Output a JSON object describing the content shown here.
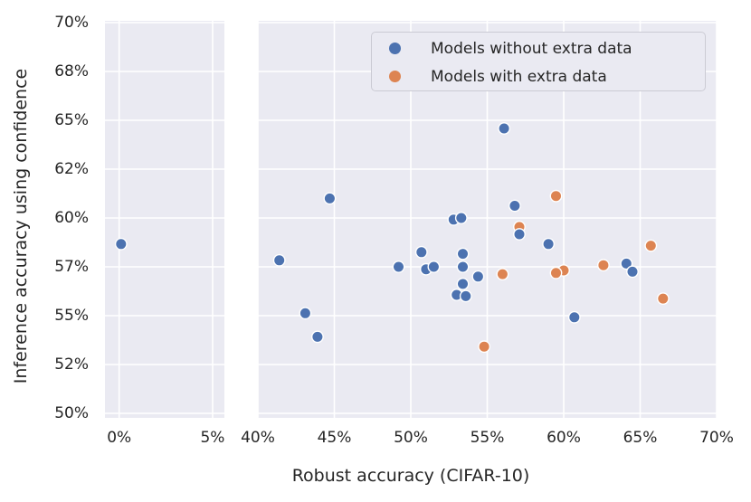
{
  "chart_data": {
    "type": "scatter",
    "title": "",
    "xlabel": "Robust accuracy (CIFAR-10)",
    "ylabel": "Inference accuracy using confidence",
    "grid": true,
    "legend_position": "upper right",
    "background_color": "#eaeaf2",
    "gridline_color": "#ffffff",
    "text_color": "#262626",
    "y_ticks": [
      {
        "value": 70,
        "label": "70%"
      },
      {
        "value": 68,
        "label": "68%"
      },
      {
        "value": 65,
        "label": "65%"
      },
      {
        "value": 62,
        "label": "62%"
      },
      {
        "value": 60,
        "label": "60%"
      },
      {
        "value": 57,
        "label": "57%"
      },
      {
        "value": 55,
        "label": "55%"
      },
      {
        "value": 52,
        "label": "52%"
      },
      {
        "value": 50,
        "label": "50%"
      }
    ],
    "ylim": [
      50,
      70
    ],
    "panels": [
      {
        "xlim": [
          -0.76,
          5.63
        ],
        "x_ticks": [
          {
            "value": 0,
            "label": "0%"
          },
          {
            "value": 5,
            "label": "5%"
          }
        ]
      },
      {
        "xlim": [
          40,
          70
        ],
        "x_ticks": [
          {
            "value": 40,
            "label": "40%"
          },
          {
            "value": 45,
            "label": "45%"
          },
          {
            "value": 50,
            "label": "50%"
          },
          {
            "value": 55,
            "label": "55%"
          },
          {
            "value": 60,
            "label": "60%"
          },
          {
            "value": 65,
            "label": "65%"
          },
          {
            "value": 70,
            "label": "70%"
          }
        ]
      }
    ],
    "series": [
      {
        "name": "Models without extra data",
        "color": "#4c72b0",
        "points": [
          [
            0.1,
            58.4
          ],
          [
            41.4,
            57.4
          ],
          [
            43.1,
            55.1
          ],
          [
            43.9,
            53.7
          ],
          [
            44.7,
            60.8
          ],
          [
            49.2,
            57.0
          ],
          [
            50.7,
            57.9
          ],
          [
            51.0,
            56.9
          ],
          [
            51.5,
            57.0
          ],
          [
            52.8,
            59.9
          ],
          [
            53.3,
            60.0
          ],
          [
            53.4,
            57.8
          ],
          [
            53.4,
            57.0
          ],
          [
            53.0,
            55.85
          ],
          [
            53.6,
            55.8
          ],
          [
            53.4,
            56.3
          ],
          [
            54.4,
            56.6
          ],
          [
            56.1,
            64.5
          ],
          [
            56.8,
            60.5
          ],
          [
            57.1,
            59.0
          ],
          [
            59.0,
            58.4
          ],
          [
            60.7,
            54.9
          ],
          [
            64.1,
            57.2
          ],
          [
            64.5,
            56.8
          ]
        ]
      },
      {
        "name": "Models with extra data",
        "color": "#dd8452",
        "points": [
          [
            54.8,
            53.1
          ],
          [
            56.0,
            56.7
          ],
          [
            57.1,
            59.45
          ],
          [
            59.5,
            60.9
          ],
          [
            60.0,
            56.85
          ],
          [
            59.5,
            56.75
          ],
          [
            62.6,
            57.1
          ],
          [
            65.7,
            58.3
          ],
          [
            66.5,
            55.7
          ]
        ]
      }
    ]
  }
}
